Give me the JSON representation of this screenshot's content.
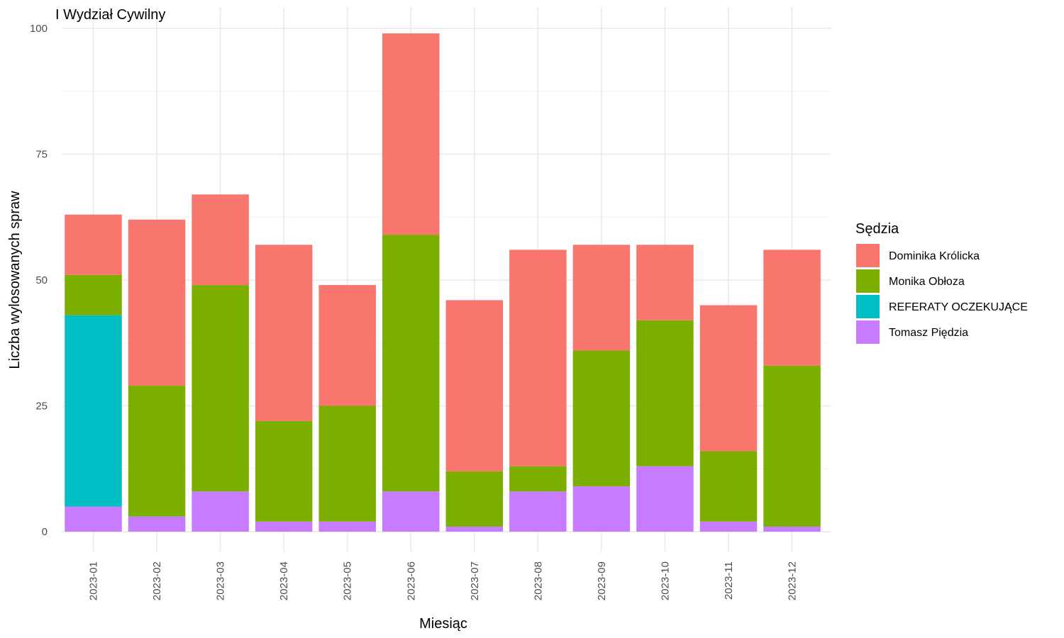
{
  "chart_data": {
    "type": "bar",
    "stacked": true,
    "title": "I Wydział Cywilny",
    "xlabel": "Miesiąc",
    "ylabel": "Liczba wylosowanych spraw",
    "ylim": [
      0,
      100
    ],
    "yticks": [
      0,
      25,
      50,
      75,
      100
    ],
    "grid": true,
    "legend_title": "Sędzia",
    "legend_position": "right",
    "categories": [
      "2023-01",
      "2023-02",
      "2023-03",
      "2023-04",
      "2023-05",
      "2023-06",
      "2023-07",
      "2023-08",
      "2023-09",
      "2023-10",
      "2023-11",
      "2023-12"
    ],
    "series": [
      {
        "name": "Dominika Królicka",
        "color": "#F8766D",
        "values": [
          12,
          33,
          18,
          35,
          24,
          40,
          34,
          43,
          21,
          15,
          29,
          23
        ]
      },
      {
        "name": "Monika Obłoza",
        "color": "#7CAE00",
        "values": [
          8,
          26,
          41,
          20,
          23,
          51,
          11,
          5,
          27,
          29,
          14,
          32
        ]
      },
      {
        "name": "REFERATY OCZEKUJĄCE",
        "color": "#00BFC4",
        "values": [
          38,
          0,
          0,
          0,
          0,
          0,
          0,
          0,
          0,
          0,
          0,
          0
        ]
      },
      {
        "name": "Tomasz Piędzia",
        "color": "#C77CFF",
        "values": [
          5,
          3,
          8,
          2,
          2,
          8,
          1,
          8,
          9,
          13,
          2,
          1
        ]
      }
    ]
  }
}
